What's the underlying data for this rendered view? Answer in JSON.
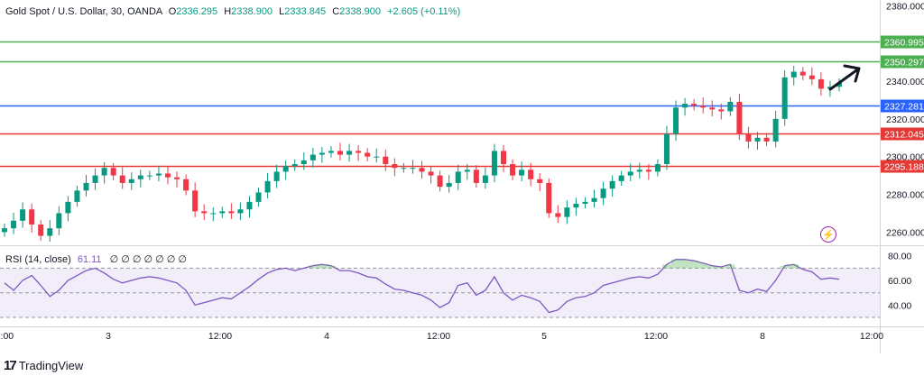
{
  "legend": {
    "symbol": "Gold Spot / U.S. Dollar, 30, OANDA",
    "open_label": "O",
    "open": "2336.295",
    "high_label": "H",
    "high": "2338.900",
    "low_label": "L",
    "low": "2333.845",
    "close_label": "C",
    "close": "2338.900",
    "change": "+2.605 (+0.11%)"
  },
  "rsi_legend": {
    "label": "RSI (14, close)",
    "value": "61.11",
    "extra": "∅ ∅ ∅ ∅ ∅ ∅ ∅"
  },
  "footer": {
    "brand": "TradingView",
    "logo_mark": "17"
  },
  "colors": {
    "up": "#089981",
    "down": "#f23645",
    "green_line": "#4caf50",
    "blue_line": "#2962ff",
    "red_line": "#e53935",
    "rsi": "#7e57c2"
  },
  "chart_data": [
    {
      "type": "candlestick",
      "title": "Gold Spot / U.S. Dollar, 30, OANDA",
      "ylim": [
        2253,
        2383
      ],
      "y_ticks": [
        "2380.000",
        "2340.000",
        "2320.000",
        "2300.000",
        "2280.000",
        "2260.000"
      ],
      "x_ticks": [
        "12:00",
        "3",
        "12:00",
        "4",
        "12:00",
        "5",
        "12:00",
        "8",
        "12:00"
      ],
      "levels": [
        {
          "label": "2360.995",
          "value": 2360.995,
          "color": "#4caf50"
        },
        {
          "label": "2350.297",
          "value": 2350.297,
          "color": "#4caf50"
        },
        {
          "label": "2327.281",
          "value": 2327.281,
          "color": "#2962ff"
        },
        {
          "label": "2312.045",
          "value": 2312.045,
          "color": "#e53935"
        },
        {
          "label": "2295.188",
          "value": 2295.188,
          "color": "#e53935"
        }
      ],
      "closes": [
        2262,
        2266,
        2272,
        2264,
        2258,
        2262,
        2270,
        2276,
        2282,
        2286,
        2290,
        2294,
        2290,
        2286,
        2288,
        2290,
        2290,
        2291,
        2289,
        2288,
        2282,
        2271,
        2270,
        2270,
        2271,
        2270,
        2272,
        2276,
        2281,
        2287,
        2292,
        2295,
        2296,
        2298,
        2301,
        2302,
        2303,
        2301,
        2303,
        2302,
        2300,
        2300,
        2296,
        2294,
        2294,
        2294,
        2292,
        2290,
        2284,
        2286,
        2292,
        2293,
        2286,
        2290,
        2303,
        2296,
        2290,
        2293,
        2288,
        2286,
        2270,
        2268,
        2273,
        2275,
        2276,
        2278,
        2283,
        2287,
        2290,
        2292,
        2293,
        2292,
        2296,
        2312,
        2326,
        2328,
        2327,
        2326,
        2325,
        2324,
        2329,
        2312,
        2308,
        2310,
        2308,
        2320,
        2342,
        2345,
        2343,
        2341,
        2336,
        2337,
        2339
      ],
      "rsi": {
        "label": "RSI (14, close)",
        "ylim": [
          30,
          82
        ],
        "ticks": [
          "80.00",
          "60.00",
          "40.00"
        ],
        "band": [
          30,
          70
        ],
        "values": [
          58,
          52,
          60,
          64,
          56,
          47,
          52,
          60,
          64,
          68,
          70,
          66,
          61,
          58,
          60,
          62,
          63,
          62,
          60,
          58,
          52,
          40,
          42,
          44,
          46,
          45,
          50,
          55,
          61,
          66,
          69,
          70,
          68,
          70,
          72,
          73,
          72,
          68,
          68,
          66,
          63,
          62,
          57,
          53,
          52,
          50,
          48,
          44,
          38,
          42,
          56,
          58,
          48,
          52,
          63,
          50,
          44,
          48,
          46,
          43,
          34,
          36,
          43,
          46,
          47,
          50,
          56,
          58,
          60,
          62,
          63,
          62,
          65,
          73,
          77,
          77,
          76,
          74,
          72,
          71,
          73,
          52,
          50,
          53,
          51,
          60,
          72,
          73,
          69,
          67,
          61,
          62,
          61
        ]
      }
    }
  ]
}
